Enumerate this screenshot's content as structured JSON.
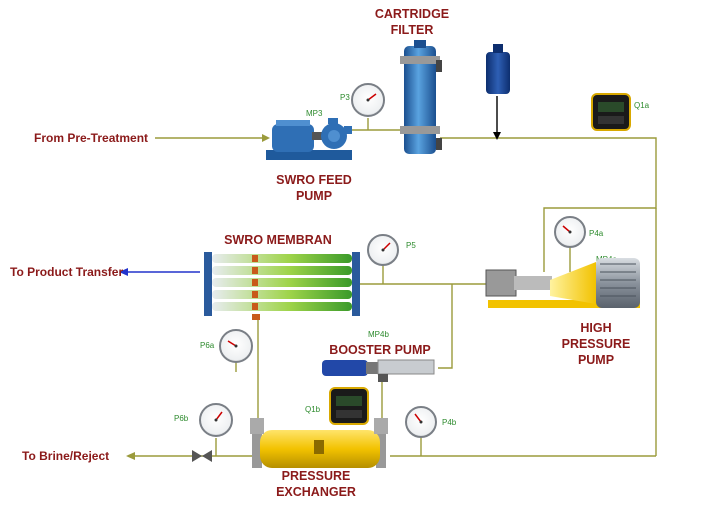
{
  "labels": {
    "from_pretreatment": "From Pre-Treatment",
    "to_product": "To Product Transfer",
    "to_brine": "To Brine/Reject",
    "cartridge_line1": "CARTRIDGE",
    "cartridge_line2": "FILTER",
    "feed_pump_line1": "SWRO FEED",
    "feed_pump_line2": "PUMP",
    "membrane": "SWRO MEMBRAN",
    "booster_pump": "BOOSTER PUMP",
    "hp_line1": "HIGH",
    "hp_line2": "PRESSURE",
    "hp_line3": "PUMP",
    "px_line1": "PRESSURE",
    "px_line2": "EXCHANGER"
  },
  "tags": {
    "mp3": "MP3",
    "p3": "P3",
    "q1a": "Q1a",
    "p4a": "P4a",
    "mp4a": "MP4a",
    "p5": "P5",
    "p6a": "P6a",
    "mp4b": "MP4b",
    "q1b": "Q1b",
    "p6b": "P6b",
    "p4b": "P4b"
  },
  "colors": {
    "pipe": "#9b9b3c",
    "label": "#8b1a1a",
    "tag": "#2e8b2e",
    "product_arrow": "#2233cc",
    "equipment_blue": "#2f6fb5",
    "exchanger_yellow": "#f2c200"
  }
}
